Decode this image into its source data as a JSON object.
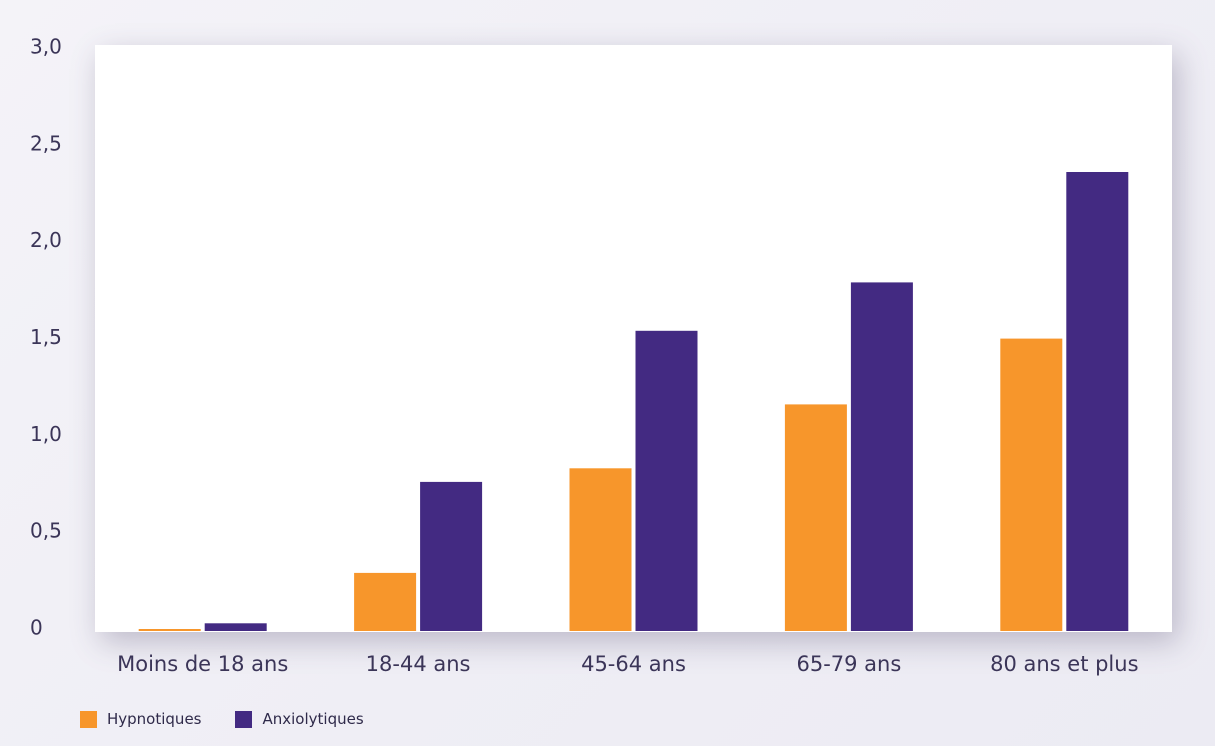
{
  "chart_data": {
    "type": "bar",
    "categories": [
      "Moins de 18 ans",
      "18-44 ans",
      "45-64 ans",
      "65-79 ans",
      "80 ans et plus"
    ],
    "series": [
      {
        "name": "Hypnotiques",
        "color": "#f7962b",
        "values": [
          0.01,
          0.3,
          0.84,
          1.17,
          1.51
        ]
      },
      {
        "name": "Anxiolytiques",
        "color": "#432a82",
        "values": [
          0.04,
          0.77,
          1.55,
          1.8,
          2.37
        ]
      }
    ],
    "yticks": [
      "0",
      "0,5",
      "1,0",
      "1,5",
      "2,0",
      "2,5",
      "3,0"
    ],
    "ylim": [
      0,
      3.0
    ],
    "grid": false,
    "legend": "bottom-left"
  }
}
